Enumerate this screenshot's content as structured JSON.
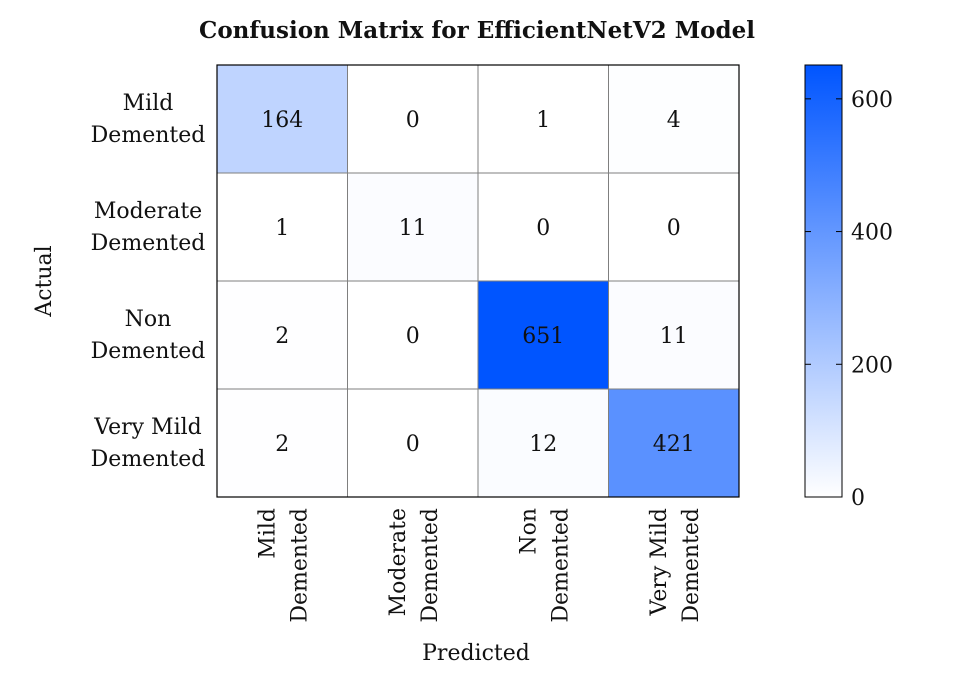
{
  "chart_data": {
    "type": "heatmap",
    "title": "Confusion Matrix for EfficientNetV2 Model",
    "xlabel": "Predicted",
    "ylabel": "Actual",
    "row_labels": [
      [
        "Mild",
        "Demented"
      ],
      [
        "Moderate",
        "Demented"
      ],
      [
        "Non",
        "Demented"
      ],
      [
        "Very Mild",
        "Demented"
      ]
    ],
    "col_labels": [
      [
        "Mild",
        "Demented"
      ],
      [
        "Moderate",
        "Demented"
      ],
      [
        "Non",
        "Demented"
      ],
      [
        "Very Mild",
        "Demented"
      ]
    ],
    "values": [
      [
        164,
        0,
        1,
        4
      ],
      [
        1,
        11,
        0,
        0
      ],
      [
        2,
        0,
        651,
        11
      ],
      [
        2,
        0,
        12,
        421
      ]
    ],
    "colorbar": {
      "min": 0,
      "max": 651,
      "ticks": [
        0,
        200,
        400,
        600
      ],
      "color_low": "#ffffff",
      "color_high": "#0055ff"
    }
  }
}
